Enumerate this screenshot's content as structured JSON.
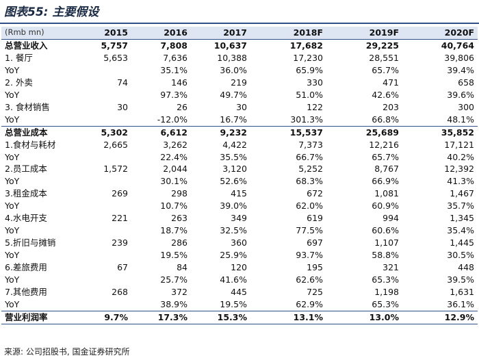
{
  "title": "图表55: 主要假设",
  "header": [
    "(Rmb mn)",
    "2015",
    "2016",
    "2017",
    "2018F",
    "2019F",
    "2020F"
  ],
  "rows": [
    {
      "label": "总营业收入",
      "values": [
        "5,757",
        "7,808",
        "10,637",
        "17,682",
        "29,225",
        "40,764"
      ],
      "style": "bold"
    },
    {
      "label": "1. 餐厅",
      "values": [
        "5,653",
        "7,636",
        "10,388",
        "17,230",
        "28,551",
        "39,806"
      ],
      "style": ""
    },
    {
      "label": "YoY",
      "values": [
        "",
        "35.1%",
        "36.0%",
        "65.9%",
        "65.7%",
        "39.4%"
      ],
      "style": ""
    },
    {
      "label": "2. 外卖",
      "values": [
        "74",
        "146",
        "219",
        "330",
        "471",
        "658"
      ],
      "style": ""
    },
    {
      "label": "YoY",
      "values": [
        "",
        "97.3%",
        "49.7%",
        "51.0%",
        "42.6%",
        "39.6%"
      ],
      "style": ""
    },
    {
      "label": "3. 食材销售",
      "values": [
        "30",
        "26",
        "30",
        "122",
        "203",
        "300"
      ],
      "style": ""
    },
    {
      "label": "YoY",
      "values": [
        "",
        "-12.0%",
        "16.7%",
        "301.3%",
        "66.8%",
        "48.1%"
      ],
      "style": ""
    },
    {
      "label": "总营业成本",
      "values": [
        "5,302",
        "6,612",
        "9,232",
        "15,537",
        "25,689",
        "35,852"
      ],
      "style": "bold"
    },
    {
      "label": "1.食材与耗材",
      "values": [
        "2,665",
        "3,262",
        "4,422",
        "7,373",
        "12,216",
        "17,121"
      ],
      "style": ""
    },
    {
      "label": "YoY",
      "values": [
        "",
        "22.4%",
        "35.5%",
        "66.7%",
        "65.7%",
        "40.2%"
      ],
      "style": ""
    },
    {
      "label": "2.员工成本",
      "values": [
        "1,572",
        "2,044",
        "3,120",
        "5,252",
        "8,767",
        "12,392"
      ],
      "style": ""
    },
    {
      "label": "YoY",
      "values": [
        "",
        "30.1%",
        "52.6%",
        "68.3%",
        "66.9%",
        "41.3%"
      ],
      "style": ""
    },
    {
      "label": "3.租金成本",
      "values": [
        "269",
        "298",
        "415",
        "672",
        "1,081",
        "1,467"
      ],
      "style": ""
    },
    {
      "label": "YoY",
      "values": [
        "",
        "10.7%",
        "39.0%",
        "62.0%",
        "60.9%",
        "35.7%"
      ],
      "style": ""
    },
    {
      "label": "4.水电开支",
      "values": [
        "221",
        "263",
        "349",
        "619",
        "994",
        "1,345"
      ],
      "style": ""
    },
    {
      "label": "YoY",
      "values": [
        "",
        "18.7%",
        "32.5%",
        "77.5%",
        "60.6%",
        "35.4%"
      ],
      "style": ""
    },
    {
      "label": "5.折旧与摊销",
      "values": [
        "239",
        "286",
        "360",
        "697",
        "1,107",
        "1,445"
      ],
      "style": ""
    },
    {
      "label": "YoY",
      "values": [
        "",
        "19.5%",
        "25.9%",
        "93.7%",
        "58.8%",
        "30.5%"
      ],
      "style": ""
    },
    {
      "label": "6.差旅费用",
      "values": [
        "67",
        "84",
        "120",
        "195",
        "321",
        "448"
      ],
      "style": ""
    },
    {
      "label": "YoY",
      "values": [
        "",
        "25.7%",
        "41.6%",
        "62.6%",
        "65.3%",
        "39.5%"
      ],
      "style": ""
    },
    {
      "label": "7.其他费用",
      "values": [
        "268",
        "372",
        "445",
        "725",
        "1,198",
        "1,631"
      ],
      "style": ""
    },
    {
      "label": "YoY",
      "values": [
        "",
        "38.9%",
        "19.5%",
        "62.9%",
        "65.3%",
        "36.1%"
      ],
      "style": ""
    },
    {
      "label": "营业利润率",
      "values": [
        "9.7%",
        "17.3%",
        "15.3%",
        "13.1%",
        "13.0%",
        "12.9%"
      ],
      "style": "last"
    }
  ],
  "source": "来源: 公司招股书, 国金证券研究所"
}
